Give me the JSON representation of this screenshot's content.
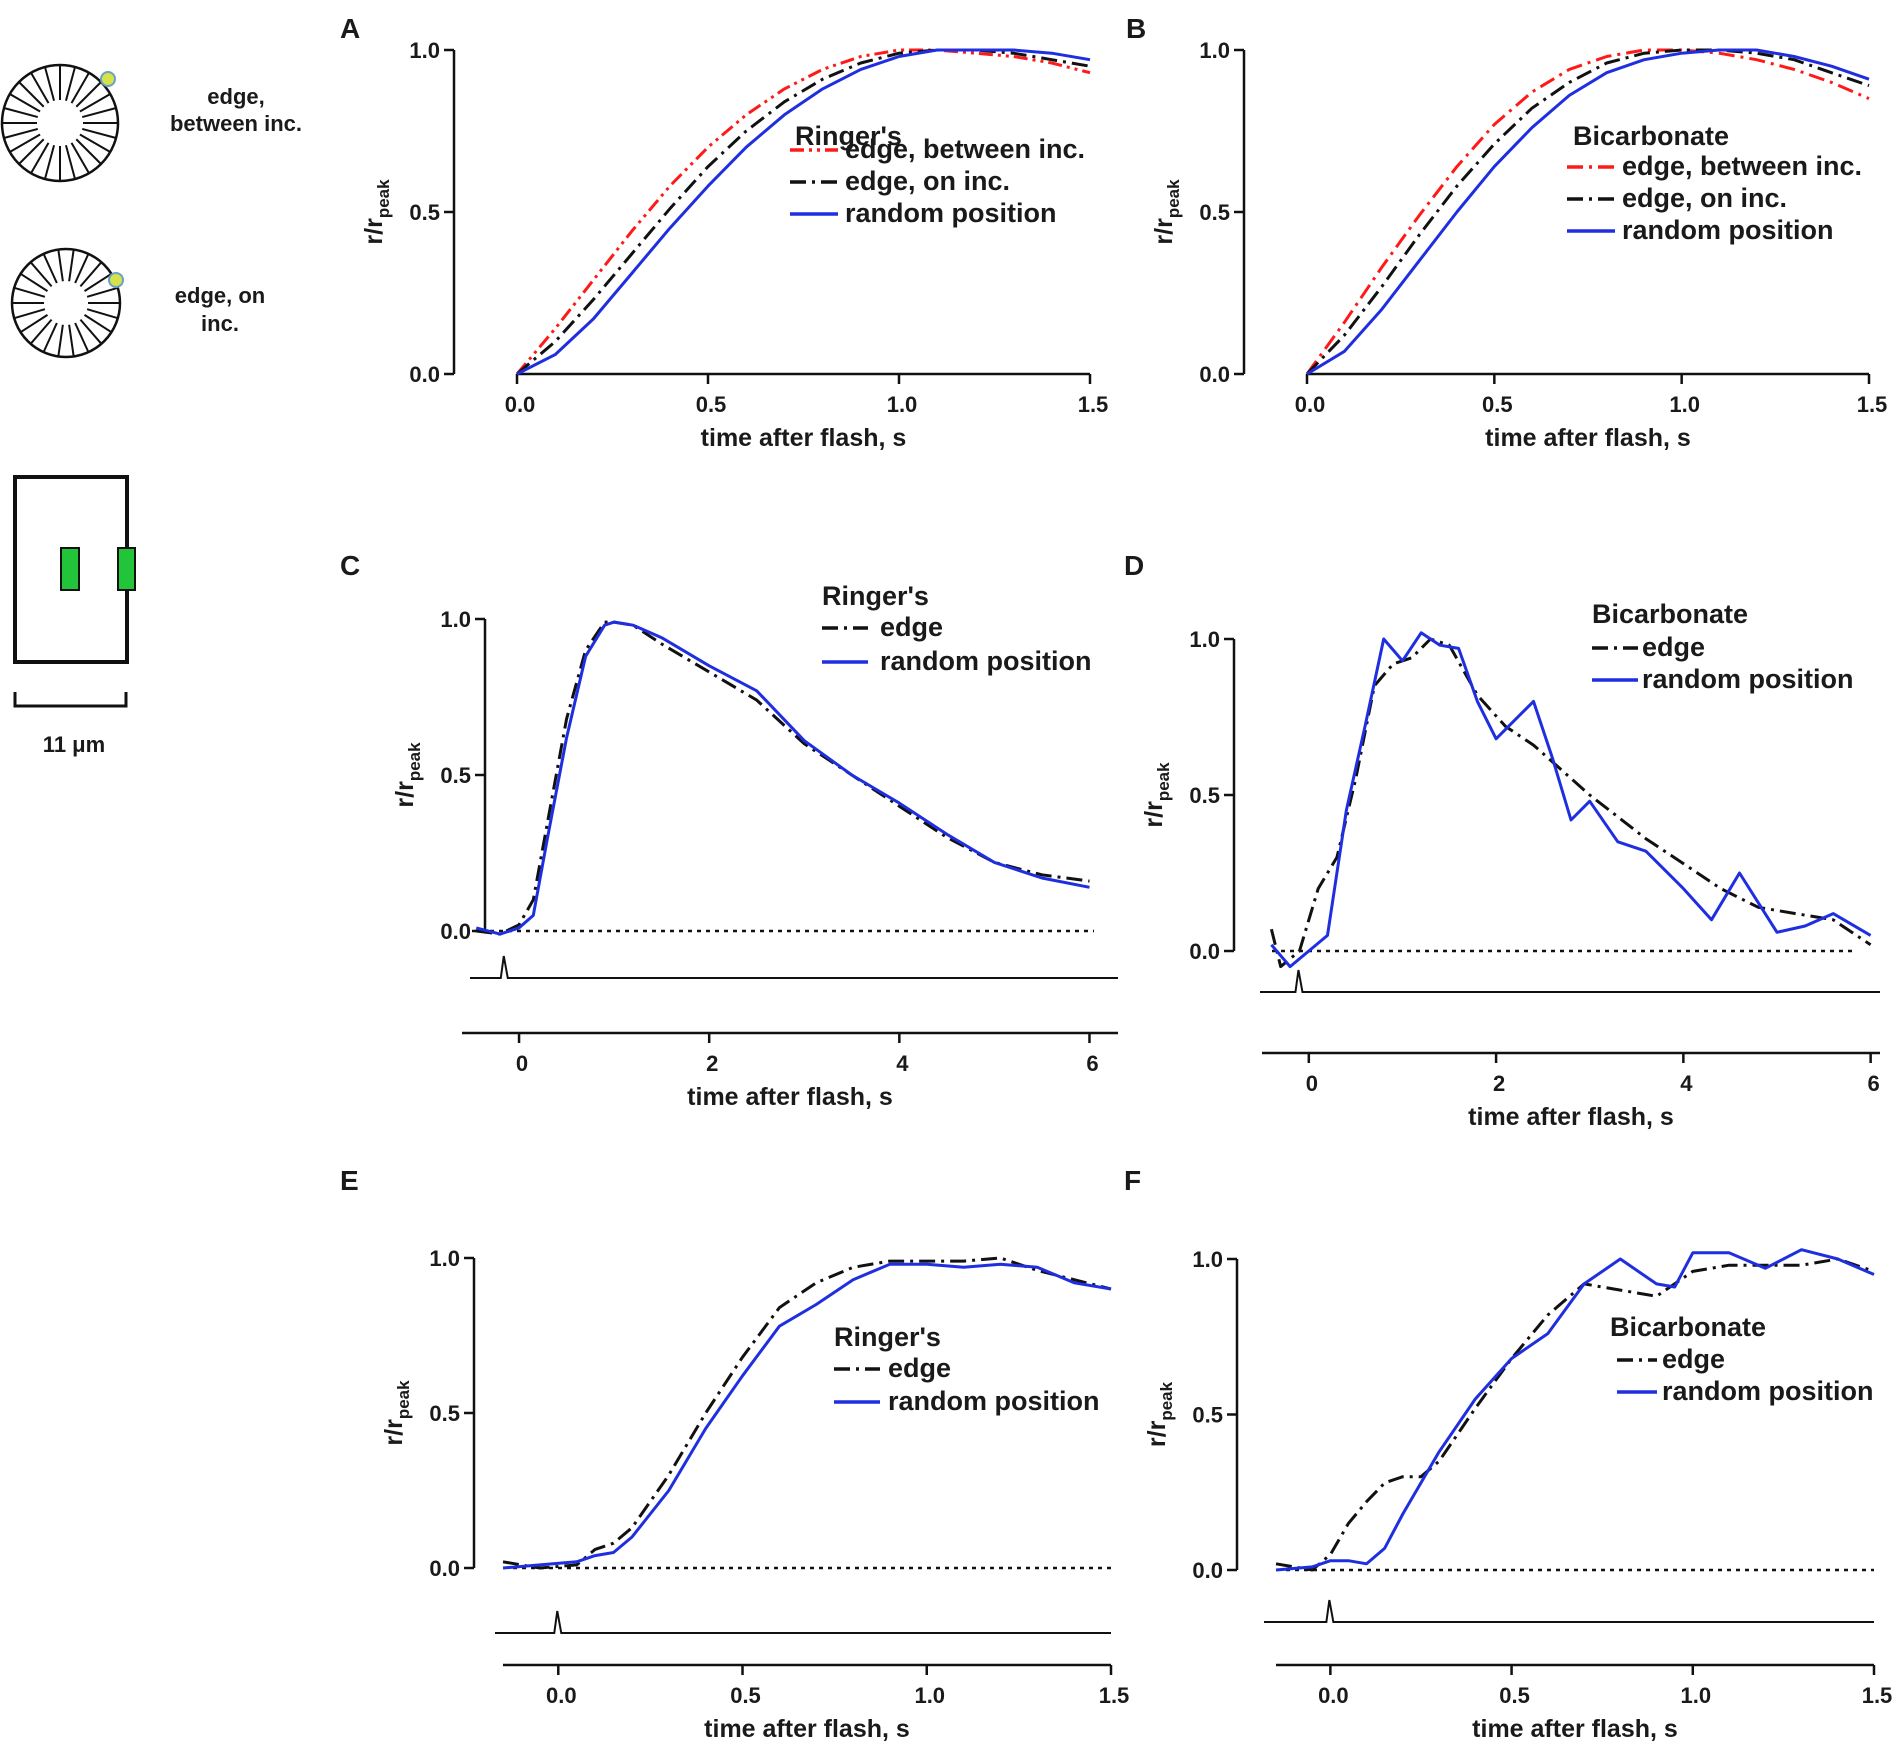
{
  "schematic": {
    "edge_between_label_line1": "edge,",
    "edge_between_label_line2": "between inc.",
    "edge_on_label_line1": "edge, on",
    "edge_on_label_line2": "inc.",
    "scale_bar_label": "11 μm",
    "marker_color": "#d6e24a",
    "patch_color": "#22c43a"
  },
  "colors": {
    "red": "#ff1a1a",
    "black": "#111111",
    "blue": "#1f2fe0"
  },
  "chart_data": [
    {
      "panel": "A",
      "type": "line",
      "ylabel": "r/r",
      "ylabel_sub": "peak",
      "xlabel": "time after flash, s",
      "xlim": [
        0,
        1.5
      ],
      "ylim": [
        0,
        1
      ],
      "xticks": [
        "0.0",
        "0.5",
        "1.0",
        "1.5"
      ],
      "yticks": [
        "0.0",
        "0.5",
        "1.0"
      ],
      "xtick_values": [
        0,
        0.5,
        1.0,
        1.5
      ],
      "ytick_values": [
        0,
        0.5,
        1.0
      ],
      "legend_title": "Ringer's",
      "series": [
        {
          "name": "edge, between inc.",
          "style": "dashdotdot",
          "color": "red",
          "x": [
            0,
            0.1,
            0.2,
            0.3,
            0.4,
            0.5,
            0.6,
            0.7,
            0.8,
            0.9,
            1.0,
            1.1,
            1.2,
            1.3,
            1.4,
            1.5
          ],
          "y": [
            0,
            0.14,
            0.29,
            0.44,
            0.58,
            0.7,
            0.8,
            0.88,
            0.94,
            0.98,
            1.0,
            1.0,
            0.99,
            0.98,
            0.96,
            0.93
          ]
        },
        {
          "name": "edge, on inc.",
          "style": "dashdot",
          "color": "black",
          "x": [
            0,
            0.1,
            0.2,
            0.3,
            0.4,
            0.5,
            0.6,
            0.7,
            0.8,
            0.9,
            1.0,
            1.1,
            1.2,
            1.3,
            1.4,
            1.5
          ],
          "y": [
            0,
            0.1,
            0.23,
            0.37,
            0.51,
            0.64,
            0.75,
            0.84,
            0.91,
            0.96,
            0.99,
            1.0,
            1.0,
            0.99,
            0.97,
            0.95
          ]
        },
        {
          "name": "random position",
          "style": "solid",
          "color": "blue",
          "x": [
            0,
            0.1,
            0.2,
            0.3,
            0.4,
            0.5,
            0.6,
            0.7,
            0.8,
            0.9,
            1.0,
            1.1,
            1.2,
            1.3,
            1.4,
            1.5
          ],
          "y": [
            0,
            0.06,
            0.17,
            0.31,
            0.45,
            0.58,
            0.7,
            0.8,
            0.88,
            0.94,
            0.98,
            1.0,
            1.0,
            1.0,
            0.99,
            0.97
          ]
        }
      ]
    },
    {
      "panel": "B",
      "type": "line",
      "ylabel": "r/r",
      "ylabel_sub": "peak",
      "xlabel": "time after flash, s",
      "xlim": [
        0,
        1.5
      ],
      "ylim": [
        0,
        1
      ],
      "xticks": [
        "0.0",
        "0.5",
        "1.0",
        "1.5"
      ],
      "yticks": [
        "0.0",
        "0.5",
        "1.0"
      ],
      "xtick_values": [
        0,
        0.5,
        1.0,
        1.5
      ],
      "ytick_values": [
        0,
        0.5,
        1.0
      ],
      "legend_title": "Bicarbonate",
      "series": [
        {
          "name": "edge, between inc.",
          "style": "dashdot",
          "color": "red",
          "x": [
            0,
            0.1,
            0.2,
            0.3,
            0.4,
            0.5,
            0.6,
            0.7,
            0.8,
            0.9,
            1.0,
            1.1,
            1.2,
            1.3,
            1.4,
            1.5
          ],
          "y": [
            0,
            0.16,
            0.33,
            0.49,
            0.64,
            0.77,
            0.87,
            0.94,
            0.98,
            1.0,
            1.0,
            0.99,
            0.97,
            0.94,
            0.9,
            0.85
          ]
        },
        {
          "name": "edge, on inc.",
          "style": "dashdot",
          "color": "black",
          "x": [
            0,
            0.1,
            0.2,
            0.3,
            0.4,
            0.5,
            0.6,
            0.7,
            0.8,
            0.9,
            1.0,
            1.1,
            1.2,
            1.3,
            1.4,
            1.5
          ],
          "y": [
            0,
            0.12,
            0.27,
            0.43,
            0.58,
            0.71,
            0.82,
            0.9,
            0.96,
            0.99,
            1.0,
            1.0,
            0.99,
            0.97,
            0.93,
            0.89
          ]
        },
        {
          "name": "random position",
          "style": "solid",
          "color": "blue",
          "x": [
            0,
            0.1,
            0.2,
            0.3,
            0.4,
            0.5,
            0.6,
            0.7,
            0.8,
            0.9,
            1.0,
            1.1,
            1.2,
            1.3,
            1.4,
            1.5
          ],
          "y": [
            0,
            0.07,
            0.2,
            0.35,
            0.5,
            0.64,
            0.76,
            0.86,
            0.93,
            0.97,
            0.99,
            1.0,
            1.0,
            0.98,
            0.95,
            0.91
          ]
        }
      ]
    },
    {
      "panel": "C",
      "type": "line",
      "ylabel": "r/r",
      "ylabel_sub": "peak",
      "xlabel": "time after flash, s",
      "xlim": [
        -0.6,
        6.3
      ],
      "ylim": [
        0,
        1
      ],
      "xticks": [
        "0",
        "2",
        "4",
        "6"
      ],
      "yticks": [
        "0.0",
        "0.5",
        "1.0"
      ],
      "xtick_values": [
        0,
        2,
        4,
        6
      ],
      "ytick_values": [
        0,
        0.5,
        1.0
      ],
      "legend_title": "Ringer's",
      "baseline_dotted": true,
      "stimulus_time": -0.15,
      "series": [
        {
          "name": "edge",
          "style": "dashdot",
          "color": "black",
          "x": [
            -0.45,
            -0.2,
            0,
            0.15,
            0.3,
            0.5,
            0.7,
            0.9,
            1.0,
            1.2,
            1.5,
            2.0,
            2.5,
            3.0,
            3.5,
            4.0,
            4.5,
            5.0,
            5.5,
            6.0
          ],
          "y": [
            0,
            -0.01,
            0.02,
            0.1,
            0.35,
            0.68,
            0.9,
            0.99,
            0.99,
            0.98,
            0.92,
            0.83,
            0.74,
            0.6,
            0.5,
            0.4,
            0.3,
            0.22,
            0.18,
            0.16
          ]
        },
        {
          "name": "random position",
          "style": "solid",
          "color": "blue",
          "x": [
            -0.45,
            -0.2,
            0,
            0.15,
            0.3,
            0.5,
            0.7,
            0.9,
            1.0,
            1.2,
            1.5,
            2.0,
            2.5,
            3.0,
            3.5,
            4.0,
            4.5,
            5.0,
            5.5,
            6.0
          ],
          "y": [
            0.01,
            -0.01,
            0.01,
            0.05,
            0.3,
            0.62,
            0.88,
            0.98,
            0.99,
            0.98,
            0.94,
            0.85,
            0.77,
            0.61,
            0.5,
            0.41,
            0.31,
            0.22,
            0.17,
            0.14
          ]
        }
      ]
    },
    {
      "panel": "D",
      "type": "line",
      "ylabel": "r/r",
      "ylabel_sub": "peak",
      "xlabel": "time after flash, s",
      "xlim": [
        -0.5,
        6.1
      ],
      "ylim": [
        0,
        1
      ],
      "xticks": [
        "0",
        "2",
        "4",
        "6"
      ],
      "yticks": [
        "0.0",
        "0.5",
        "1.0"
      ],
      "xtick_values": [
        0,
        2,
        4,
        6
      ],
      "ytick_values": [
        0,
        0.5,
        1.0
      ],
      "legend_title": "Bicarbonate",
      "baseline_dotted": true,
      "stimulus_time": -0.1,
      "series": [
        {
          "name": "edge",
          "style": "dashdot",
          "color": "black",
          "x": [
            -0.4,
            -0.3,
            -0.1,
            0.1,
            0.3,
            0.5,
            0.7,
            0.9,
            1.1,
            1.3,
            1.5,
            1.8,
            2.1,
            2.4,
            2.7,
            3.0,
            3.3,
            3.6,
            4.0,
            4.4,
            4.8,
            5.2,
            5.6,
            6.0
          ],
          "y": [
            0.07,
            -0.05,
            0.0,
            0.2,
            0.3,
            0.55,
            0.85,
            0.92,
            0.94,
            1.0,
            0.98,
            0.82,
            0.72,
            0.66,
            0.58,
            0.5,
            0.43,
            0.36,
            0.28,
            0.2,
            0.14,
            0.12,
            0.1,
            0.02
          ]
        },
        {
          "name": "random position",
          "style": "solid",
          "color": "blue",
          "x": [
            -0.4,
            -0.2,
            0.0,
            0.2,
            0.4,
            0.6,
            0.8,
            1.0,
            1.2,
            1.4,
            1.6,
            1.8,
            2.0,
            2.2,
            2.4,
            2.6,
            2.8,
            3.0,
            3.3,
            3.6,
            4.0,
            4.3,
            4.6,
            5.0,
            5.3,
            5.6,
            6.0
          ],
          "y": [
            0.02,
            -0.05,
            0.0,
            0.05,
            0.45,
            0.72,
            1.0,
            0.93,
            1.02,
            0.98,
            0.97,
            0.8,
            0.68,
            0.74,
            0.8,
            0.62,
            0.42,
            0.48,
            0.35,
            0.32,
            0.2,
            0.1,
            0.25,
            0.06,
            0.08,
            0.12,
            0.05
          ]
        }
      ]
    },
    {
      "panel": "E",
      "type": "line",
      "ylabel": "r/r",
      "ylabel_sub": "peak",
      "xlabel": "time after flash, s",
      "xlim": [
        -0.15,
        1.5
      ],
      "ylim": [
        0,
        1
      ],
      "xticks": [
        "0.0",
        "0.5",
        "1.0",
        "1.5"
      ],
      "yticks": [
        "0.0",
        "0.5",
        "1.0"
      ],
      "xtick_values": [
        0,
        0.5,
        1.0,
        1.5
      ],
      "ytick_values": [
        0,
        0.5,
        1.0
      ],
      "legend_title": "Ringer's",
      "baseline_dotted": true,
      "stimulus_time": 0.0,
      "series": [
        {
          "name": "edge",
          "style": "dashdot",
          "color": "black",
          "x": [
            -0.15,
            -0.05,
            0.05,
            0.1,
            0.15,
            0.2,
            0.3,
            0.4,
            0.5,
            0.6,
            0.7,
            0.8,
            0.9,
            1.0,
            1.1,
            1.2,
            1.3,
            1.4,
            1.5
          ],
          "y": [
            0.02,
            0.0,
            0.01,
            0.06,
            0.08,
            0.13,
            0.3,
            0.5,
            0.68,
            0.84,
            0.92,
            0.97,
            0.99,
            0.99,
            0.99,
            1.0,
            0.96,
            0.93,
            0.9
          ]
        },
        {
          "name": "random position",
          "style": "solid",
          "color": "blue",
          "x": [
            -0.15,
            -0.05,
            0.05,
            0.1,
            0.15,
            0.2,
            0.3,
            0.4,
            0.5,
            0.6,
            0.7,
            0.8,
            0.9,
            1.0,
            1.1,
            1.2,
            1.3,
            1.4,
            1.5
          ],
          "y": [
            0.0,
            0.01,
            0.02,
            0.04,
            0.05,
            0.1,
            0.25,
            0.45,
            0.62,
            0.78,
            0.85,
            0.93,
            0.98,
            0.98,
            0.97,
            0.98,
            0.97,
            0.92,
            0.9
          ]
        }
      ]
    },
    {
      "panel": "F",
      "type": "line",
      "ylabel": "r/r",
      "ylabel_sub": "peak",
      "xlabel": "time after flash, s",
      "xlim": [
        -0.15,
        1.5
      ],
      "ylim": [
        0,
        1
      ],
      "xticks": [
        "0.0",
        "0.5",
        "1.0",
        "1.5"
      ],
      "yticks": [
        "0.0",
        "0.5",
        "1.0"
      ],
      "xtick_values": [
        0,
        0.5,
        1.0,
        1.5
      ],
      "ytick_values": [
        0,
        0.5,
        1.0
      ],
      "legend_title": "Bicarbonate",
      "baseline_dotted": true,
      "stimulus_time": 0.0,
      "series": [
        {
          "name": "edge",
          "style": "dashdot",
          "color": "black",
          "x": [
            -0.15,
            -0.05,
            0.0,
            0.05,
            0.1,
            0.15,
            0.2,
            0.25,
            0.3,
            0.4,
            0.5,
            0.6,
            0.7,
            0.8,
            0.9,
            1.0,
            1.1,
            1.2,
            1.3,
            1.4,
            1.5
          ],
          "y": [
            0.02,
            0.0,
            0.05,
            0.15,
            0.22,
            0.28,
            0.3,
            0.3,
            0.35,
            0.52,
            0.68,
            0.82,
            0.92,
            0.9,
            0.88,
            0.96,
            0.98,
            0.98,
            0.98,
            1.0,
            0.96
          ]
        },
        {
          "name": "random position",
          "style": "solid",
          "color": "blue",
          "x": [
            -0.15,
            -0.05,
            0.0,
            0.05,
            0.1,
            0.15,
            0.2,
            0.3,
            0.4,
            0.5,
            0.6,
            0.7,
            0.8,
            0.9,
            0.95,
            1.0,
            1.1,
            1.2,
            1.3,
            1.4,
            1.5
          ],
          "y": [
            0.0,
            0.01,
            0.03,
            0.03,
            0.02,
            0.07,
            0.18,
            0.38,
            0.55,
            0.68,
            0.76,
            0.92,
            1.0,
            0.92,
            0.91,
            1.02,
            1.02,
            0.97,
            1.03,
            1.0,
            0.95
          ]
        }
      ]
    }
  ]
}
